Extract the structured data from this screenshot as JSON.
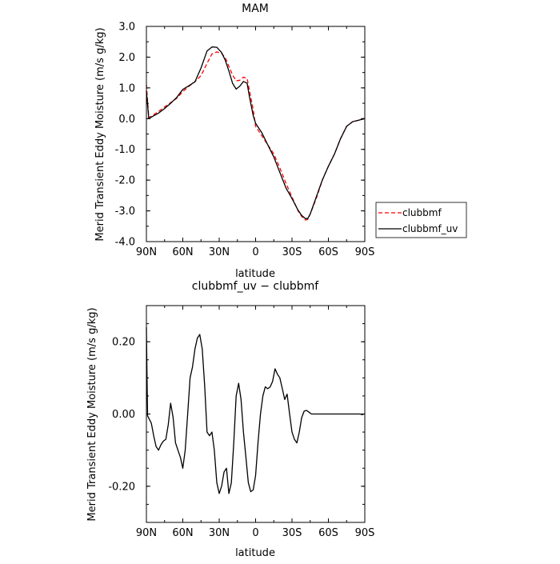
{
  "chart_data": [
    {
      "type": "line",
      "title": "MAM",
      "xlabel": "latitude",
      "ylabel": "Merid Transient Eddy Moisture (m/s g/kg)",
      "xlim": [
        90,
        -90
      ],
      "ylim": [
        -4.0,
        3.0
      ],
      "xticks": [
        90,
        60,
        30,
        0,
        -30,
        -60,
        -90
      ],
      "xticklabels": [
        "90N",
        "60N",
        "30N",
        "0",
        "30S",
        "60S",
        "90S"
      ],
      "yticks": [
        3.0,
        2.0,
        1.0,
        0.0,
        -1.0,
        -2.0,
        -3.0,
        -4.0
      ],
      "yticklabels": [
        "3.0",
        "2.0",
        "1.0",
        "0.0",
        "-1.0",
        "-2.0",
        "-3.0",
        "-4.0"
      ],
      "grid": false,
      "legend": "outside-right",
      "series": [
        {
          "name": "clubbmf",
          "color": "#ff0000",
          "dash": true,
          "x": [
            90,
            88,
            85,
            80,
            75,
            70,
            65,
            60,
            55,
            50,
            45,
            40,
            36,
            32,
            28,
            25,
            22,
            19,
            16,
            13,
            10,
            7,
            5,
            2,
            0,
            -5,
            -10,
            -15,
            -20,
            -25,
            -30,
            -35,
            -38,
            -41,
            -43,
            -45,
            -50,
            -55,
            -60,
            -65,
            -70,
            -75,
            -80,
            -85,
            -90
          ],
          "y": [
            1.1,
            0.03,
            0.1,
            0.23,
            0.38,
            0.52,
            0.66,
            0.88,
            1.05,
            1.2,
            1.4,
            1.8,
            2.1,
            2.17,
            2.12,
            1.98,
            1.7,
            1.42,
            1.23,
            1.25,
            1.35,
            1.3,
            0.9,
            0.3,
            -0.25,
            -0.55,
            -0.85,
            -1.15,
            -1.6,
            -2.1,
            -2.55,
            -3.0,
            -3.18,
            -3.3,
            -3.28,
            -3.1,
            -2.6,
            -2.0,
            -1.55,
            -1.15,
            -0.65,
            -0.25,
            -0.1,
            -0.05,
            0.0
          ]
        },
        {
          "name": "clubbmf_uv",
          "color": "#000000",
          "dash": false,
          "x": [
            90,
            88,
            85,
            80,
            75,
            70,
            65,
            60,
            55,
            50,
            45,
            40,
            36,
            32,
            28,
            25,
            22,
            19,
            16,
            13,
            10,
            7,
            5,
            2,
            0,
            -5,
            -10,
            -15,
            -20,
            -25,
            -30,
            -35,
            -38,
            -41,
            -43,
            -45,
            -50,
            -55,
            -60,
            -65,
            -70,
            -75,
            -80,
            -85,
            -90
          ],
          "y": [
            0.9,
            0.0,
            0.07,
            0.18,
            0.33,
            0.5,
            0.69,
            0.95,
            1.07,
            1.2,
            1.65,
            2.2,
            2.33,
            2.32,
            2.15,
            1.9,
            1.55,
            1.15,
            0.96,
            1.06,
            1.21,
            1.15,
            0.7,
            0.1,
            -0.15,
            -0.45,
            -0.85,
            -1.25,
            -1.75,
            -2.25,
            -2.6,
            -2.98,
            -3.15,
            -3.25,
            -3.25,
            -3.1,
            -2.55,
            -2.0,
            -1.55,
            -1.15,
            -0.65,
            -0.25,
            -0.1,
            -0.05,
            0.0
          ]
        }
      ]
    },
    {
      "type": "line",
      "title": "clubbmf_uv − clubbmf",
      "xlabel": "latitude",
      "ylabel": "Merid Transient Eddy Moisture (m/s g/kg)",
      "xlim": [
        90,
        -90
      ],
      "ylim": [
        -0.3,
        0.3
      ],
      "xticks": [
        90,
        60,
        30,
        0,
        -30,
        -60,
        -90
      ],
      "xticklabels": [
        "90N",
        "60N",
        "30N",
        "0",
        "30S",
        "60S",
        "90S"
      ],
      "yticks": [
        0.2,
        0.0,
        -0.2
      ],
      "yticklabels": [
        "0.20",
        "0.00",
        "-0.20"
      ],
      "grid": false,
      "series": [
        {
          "name": "",
          "color": "#000000",
          "dash": false,
          "x": [
            90,
            89.5,
            89,
            86,
            84,
            82,
            80,
            78,
            76,
            74,
            72,
            70,
            68,
            66,
            64,
            62,
            60,
            58,
            56,
            54,
            52,
            50,
            48,
            46,
            44,
            42,
            40,
            38,
            36,
            34,
            32,
            30,
            28,
            26,
            24,
            22,
            20,
            18,
            16,
            14,
            12,
            10,
            8,
            6,
            4,
            2,
            0,
            -2,
            -4,
            -6,
            -8,
            -10,
            -12,
            -14,
            -16,
            -18,
            -20,
            -22,
            -24,
            -26,
            -28,
            -30,
            -32,
            -34,
            -36,
            -38,
            -40,
            -42,
            -44,
            -46,
            -48,
            -50,
            -52,
            -54,
            -56,
            -58,
            -60,
            -62,
            -64,
            -66,
            -68,
            -70,
            -72,
            -74,
            -76,
            -78,
            -80,
            -82,
            -84,
            -86,
            -88,
            -89,
            -90
          ],
          "y": [
            0.24,
            0.1,
            -0.005,
            -0.025,
            -0.06,
            -0.09,
            -0.1,
            -0.085,
            -0.075,
            -0.07,
            -0.03,
            0.03,
            -0.01,
            -0.08,
            -0.1,
            -0.12,
            -0.15,
            -0.1,
            0.0,
            0.1,
            0.13,
            0.18,
            0.21,
            0.22,
            0.18,
            0.08,
            -0.05,
            -0.06,
            -0.05,
            -0.1,
            -0.19,
            -0.22,
            -0.2,
            -0.16,
            -0.15,
            -0.22,
            -0.19,
            -0.08,
            0.05,
            0.085,
            0.04,
            -0.05,
            -0.12,
            -0.19,
            -0.215,
            -0.21,
            -0.17,
            -0.08,
            0.0,
            0.05,
            0.075,
            0.07,
            0.075,
            0.09,
            0.125,
            0.11,
            0.1,
            0.07,
            0.04,
            0.055,
            0.0,
            -0.05,
            -0.07,
            -0.08,
            -0.05,
            -0.01,
            0.008,
            0.01,
            0.005,
            0.0,
            0.0,
            0.0,
            0.0,
            0.0,
            0.0,
            0.0,
            0.0,
            0.0,
            0.0,
            0.0,
            0.0,
            0.0,
            0.0,
            0.0,
            0.0,
            0.0,
            0.0,
            0.0,
            0.0,
            0.0,
            -0.002,
            0.0,
            0.0
          ]
        }
      ]
    }
  ]
}
